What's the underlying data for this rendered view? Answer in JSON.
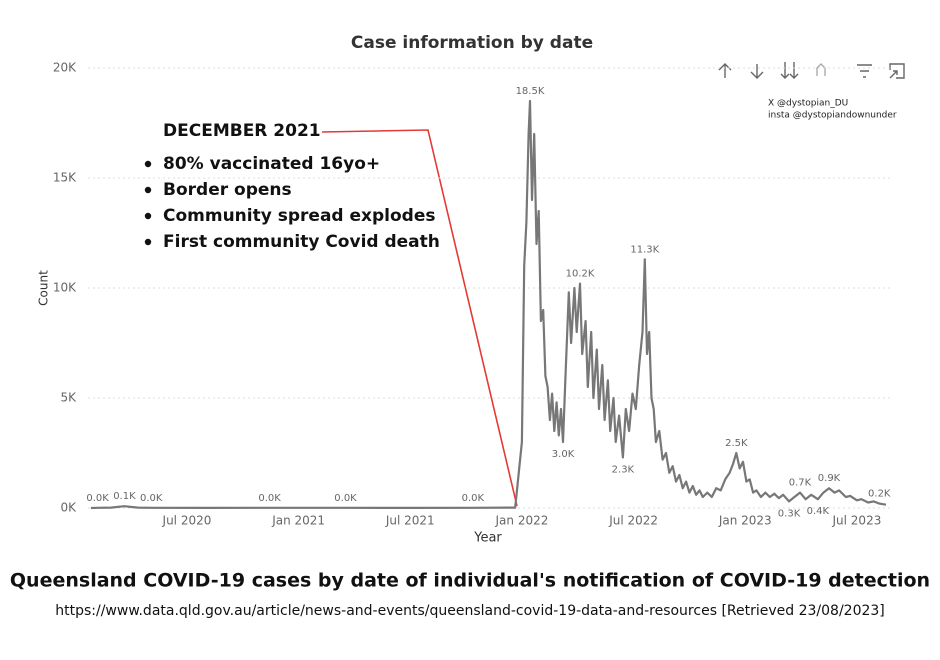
{
  "chart_data": {
    "type": "line",
    "title": "Case information by date",
    "y_label": "Count",
    "x_label": "Year",
    "xlim": [
      2020.0,
      2023.7
    ],
    "xticks": [
      {
        "value": 2020.5,
        "label": "Jul 2020"
      },
      {
        "value": 2021.0,
        "label": "Jan 2021"
      },
      {
        "value": 2021.5,
        "label": "Jul 2021"
      },
      {
        "value": 2022.0,
        "label": "Jan 2022"
      },
      {
        "value": 2022.5,
        "label": "Jul 2022"
      },
      {
        "value": 2023.0,
        "label": "Jan 2023"
      },
      {
        "value": 2023.5,
        "label": "Jul 2023"
      }
    ],
    "ylim": [
      0,
      20000
    ],
    "yticks": [
      {
        "value": 0,
        "label": "0K"
      },
      {
        "value": 5000,
        "label": "5K"
      },
      {
        "value": 10000,
        "label": "10K"
      },
      {
        "value": 15000,
        "label": "15K"
      },
      {
        "value": 20000,
        "label": "20K"
      }
    ],
    "grid": true,
    "x": [
      2020.07,
      2020.1,
      2020.16,
      2020.22,
      2020.28,
      2020.34,
      2020.6,
      2020.87,
      2021.21,
      2021.5,
      2021.78,
      2021.97,
      2022.0,
      2022.01,
      2022.02,
      2022.03,
      2022.036,
      2022.045,
      2022.055,
      2022.065,
      2022.075,
      2022.085,
      2022.095,
      2022.105,
      2022.115,
      2022.125,
      2022.135,
      2022.145,
      2022.155,
      2022.165,
      2022.175,
      2022.184,
      2022.195,
      2022.21,
      2022.22,
      2022.235,
      2022.245,
      2022.26,
      2022.27,
      2022.285,
      2022.295,
      2022.31,
      2022.32,
      2022.335,
      2022.345,
      2022.36,
      2022.37,
      2022.385,
      2022.395,
      2022.41,
      2022.42,
      2022.435,
      2022.452,
      2022.465,
      2022.48,
      2022.495,
      2022.51,
      2022.525,
      2022.54,
      2022.55,
      2022.56,
      2022.57,
      2022.58,
      2022.59,
      2022.6,
      2022.615,
      2022.63,
      2022.645,
      2022.66,
      2022.675,
      2022.69,
      2022.705,
      2022.72,
      2022.735,
      2022.75,
      2022.765,
      2022.78,
      2022.795,
      2022.81,
      2022.83,
      2022.85,
      2022.87,
      2022.89,
      2022.91,
      2022.93,
      2022.945,
      2022.96,
      2022.975,
      2022.99,
      2023.005,
      2023.02,
      2023.035,
      2023.05,
      2023.07,
      2023.09,
      2023.11,
      2023.13,
      2023.15,
      2023.17,
      2023.196,
      2023.22,
      2023.245,
      2023.27,
      2023.295,
      2023.325,
      2023.35,
      2023.375,
      2023.4,
      2023.42,
      2023.45,
      2023.47,
      2023.5,
      2023.52,
      2023.55,
      2023.575,
      2023.6,
      2023.63
    ],
    "series": [
      {
        "color": "#777777",
        "values": [
          0,
          10,
          20,
          80,
          20,
          10,
          5,
          10,
          10,
          5,
          10,
          20,
          3000,
          11000,
          13000,
          17000,
          18500,
          14000,
          17000,
          12000,
          13500,
          8500,
          9000,
          6000,
          5500,
          4000,
          5200,
          3500,
          4800,
          3300,
          4500,
          3000,
          6000,
          9800,
          7500,
          10000,
          8000,
          10200,
          7000,
          8500,
          5500,
          8000,
          5000,
          7200,
          4500,
          6500,
          4000,
          5800,
          3500,
          5000,
          3000,
          4200,
          2300,
          4500,
          3500,
          5200,
          4500,
          6500,
          8000,
          11300,
          7000,
          8000,
          5000,
          4500,
          3000,
          3500,
          2200,
          2500,
          1600,
          1900,
          1200,
          1500,
          900,
          1200,
          700,
          1000,
          600,
          800,
          500,
          700,
          500,
          900,
          800,
          1300,
          1600,
          2000,
          2500,
          1800,
          2100,
          1200,
          1300,
          700,
          800,
          500,
          700,
          500,
          650,
          450,
          600,
          300,
          500,
          700,
          400,
          600,
          400,
          700,
          900,
          700,
          800,
          500,
          550,
          350,
          400,
          250,
          300,
          200,
          150
        ],
        "value_labels": [
          null,
          "0.0K",
          null,
          "0.1K",
          null,
          "0.0K",
          null,
          "0.0K",
          "0.0K",
          null,
          "0.0K",
          null,
          null,
          null,
          null,
          null,
          "18.5K",
          null,
          null,
          null,
          null,
          null,
          null,
          null,
          null,
          null,
          null,
          null,
          null,
          null,
          null,
          "3.0K",
          null,
          null,
          null,
          null,
          null,
          "10.2K",
          null,
          null,
          null,
          null,
          null,
          null,
          null,
          null,
          null,
          null,
          null,
          null,
          null,
          null,
          "2.3K",
          null,
          null,
          null,
          null,
          null,
          null,
          "11.3K",
          null,
          null,
          null,
          null,
          null,
          null,
          null,
          null,
          null,
          null,
          null,
          null,
          null,
          null,
          null,
          null,
          null,
          null,
          null,
          null,
          null,
          null,
          null,
          null,
          null,
          null,
          "2.5K",
          null,
          null,
          null,
          null,
          null,
          null,
          null,
          null,
          null,
          null,
          null,
          null,
          "0.3K",
          null,
          "0.7K",
          null,
          null,
          "0.4K",
          null,
          "0.9K",
          null,
          null,
          null,
          null,
          null,
          null,
          null,
          null,
          "0.2K",
          null
        ]
      }
    ]
  },
  "annotation": {
    "heading": "DECEMBER 2021",
    "bullets": [
      "80% vaccinated 16yo+",
      "Border opens",
      "Community spread explodes",
      "First community Covid death"
    ]
  },
  "watermark": [
    "X @dystopian_DU",
    "insta @dystopiandownunder"
  ],
  "caption": "Queensland COVID-19 cases by date of individual's notification of COVID-19 detection",
  "source": "https://www.data.qld.gov.au/article/news-and-events/queensland-covid-19-data-and-resources [Retrieved 23/08/2023]"
}
